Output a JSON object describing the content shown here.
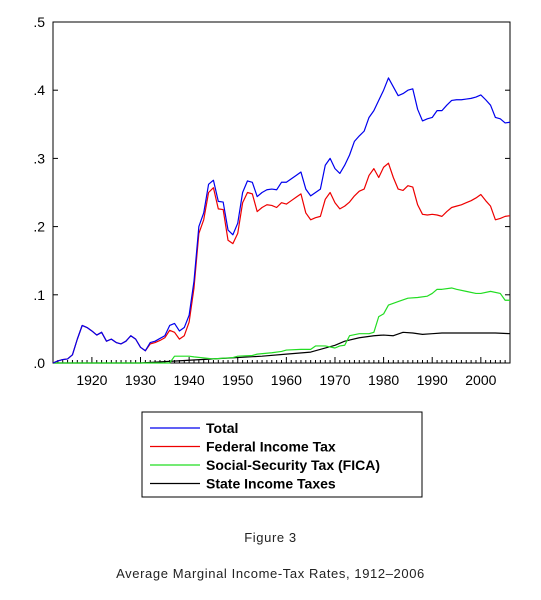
{
  "chart_data": {
    "type": "line",
    "xlim": [
      1912,
      2006
    ],
    "ylim": [
      0,
      0.5
    ],
    "x_ticks": [
      1920,
      1930,
      1940,
      1950,
      1960,
      1970,
      1980,
      1990,
      2000
    ],
    "x_tick_labels": [
      "1920",
      "1930",
      "1940",
      "1950",
      "1960",
      "1970",
      "1980",
      "1990",
      "2000"
    ],
    "y_ticks": [
      0,
      0.1,
      0.2,
      0.3,
      0.4,
      0.5
    ],
    "y_tick_labels": [
      ".0",
      ".1",
      ".2",
      ".3",
      ".4",
      ".5"
    ],
    "grid": false,
    "legend_position": "bottom",
    "series": [
      {
        "name": "Total",
        "color": "#0000ee",
        "points": [
          [
            1912,
            0.0
          ],
          [
            1913,
            0.003
          ],
          [
            1914,
            0.005
          ],
          [
            1915,
            0.006
          ],
          [
            1916,
            0.012
          ],
          [
            1917,
            0.035
          ],
          [
            1918,
            0.055
          ],
          [
            1919,
            0.052
          ],
          [
            1920,
            0.047
          ],
          [
            1921,
            0.041
          ],
          [
            1922,
            0.045
          ],
          [
            1923,
            0.032
          ],
          [
            1924,
            0.035
          ],
          [
            1925,
            0.03
          ],
          [
            1926,
            0.028
          ],
          [
            1927,
            0.032
          ],
          [
            1928,
            0.04
          ],
          [
            1929,
            0.035
          ],
          [
            1930,
            0.023
          ],
          [
            1931,
            0.018
          ],
          [
            1932,
            0.03
          ],
          [
            1933,
            0.032
          ],
          [
            1934,
            0.036
          ],
          [
            1935,
            0.04
          ],
          [
            1936,
            0.055
          ],
          [
            1937,
            0.058
          ],
          [
            1938,
            0.047
          ],
          [
            1939,
            0.052
          ],
          [
            1940,
            0.07
          ],
          [
            1941,
            0.12
          ],
          [
            1942,
            0.2
          ],
          [
            1943,
            0.22
          ],
          [
            1944,
            0.262
          ],
          [
            1945,
            0.268
          ],
          [
            1946,
            0.237
          ],
          [
            1947,
            0.236
          ],
          [
            1948,
            0.195
          ],
          [
            1949,
            0.188
          ],
          [
            1950,
            0.205
          ],
          [
            1951,
            0.25
          ],
          [
            1952,
            0.267
          ],
          [
            1953,
            0.265
          ],
          [
            1954,
            0.244
          ],
          [
            1955,
            0.25
          ],
          [
            1956,
            0.254
          ],
          [
            1957,
            0.255
          ],
          [
            1958,
            0.254
          ],
          [
            1959,
            0.265
          ],
          [
            1960,
            0.265
          ],
          [
            1961,
            0.27
          ],
          [
            1962,
            0.275
          ],
          [
            1963,
            0.28
          ],
          [
            1964,
            0.255
          ],
          [
            1965,
            0.245
          ],
          [
            1966,
            0.25
          ],
          [
            1967,
            0.255
          ],
          [
            1968,
            0.29
          ],
          [
            1969,
            0.3
          ],
          [
            1970,
            0.285
          ],
          [
            1971,
            0.278
          ],
          [
            1972,
            0.29
          ],
          [
            1973,
            0.305
          ],
          [
            1974,
            0.325
          ],
          [
            1975,
            0.333
          ],
          [
            1976,
            0.34
          ],
          [
            1977,
            0.36
          ],
          [
            1978,
            0.37
          ],
          [
            1979,
            0.385
          ],
          [
            1980,
            0.4
          ],
          [
            1981,
            0.418
          ],
          [
            1982,
            0.405
          ],
          [
            1983,
            0.392
          ],
          [
            1984,
            0.395
          ],
          [
            1985,
            0.4
          ],
          [
            1986,
            0.402
          ],
          [
            1987,
            0.372
          ],
          [
            1988,
            0.355
          ],
          [
            1989,
            0.358
          ],
          [
            1990,
            0.36
          ],
          [
            1991,
            0.37
          ],
          [
            1992,
            0.37
          ],
          [
            1993,
            0.378
          ],
          [
            1994,
            0.385
          ],
          [
            1995,
            0.386
          ],
          [
            1996,
            0.386
          ],
          [
            1997,
            0.387
          ],
          [
            1998,
            0.388
          ],
          [
            1999,
            0.39
          ],
          [
            2000,
            0.393
          ],
          [
            2001,
            0.386
          ],
          [
            2002,
            0.378
          ],
          [
            2003,
            0.36
          ],
          [
            2004,
            0.358
          ],
          [
            2005,
            0.352
          ],
          [
            2006,
            0.353
          ]
        ]
      },
      {
        "name": "Federal Income Tax",
        "color": "#ee0000",
        "points": [
          [
            1912,
            0.0
          ],
          [
            1913,
            0.003
          ],
          [
            1914,
            0.005
          ],
          [
            1915,
            0.006
          ],
          [
            1916,
            0.012
          ],
          [
            1917,
            0.035
          ],
          [
            1918,
            0.055
          ],
          [
            1919,
            0.052
          ],
          [
            1920,
            0.047
          ],
          [
            1921,
            0.041
          ],
          [
            1922,
            0.045
          ],
          [
            1923,
            0.032
          ],
          [
            1924,
            0.035
          ],
          [
            1925,
            0.03
          ],
          [
            1926,
            0.028
          ],
          [
            1927,
            0.032
          ],
          [
            1928,
            0.04
          ],
          [
            1929,
            0.035
          ],
          [
            1930,
            0.023
          ],
          [
            1931,
            0.018
          ],
          [
            1932,
            0.028
          ],
          [
            1933,
            0.03
          ],
          [
            1934,
            0.033
          ],
          [
            1935,
            0.037
          ],
          [
            1936,
            0.048
          ],
          [
            1937,
            0.045
          ],
          [
            1938,
            0.035
          ],
          [
            1939,
            0.04
          ],
          [
            1940,
            0.06
          ],
          [
            1941,
            0.11
          ],
          [
            1942,
            0.19
          ],
          [
            1943,
            0.21
          ],
          [
            1944,
            0.25
          ],
          [
            1945,
            0.257
          ],
          [
            1946,
            0.226
          ],
          [
            1947,
            0.225
          ],
          [
            1948,
            0.18
          ],
          [
            1949,
            0.175
          ],
          [
            1950,
            0.19
          ],
          [
            1951,
            0.235
          ],
          [
            1952,
            0.25
          ],
          [
            1953,
            0.248
          ],
          [
            1954,
            0.222
          ],
          [
            1955,
            0.228
          ],
          [
            1956,
            0.232
          ],
          [
            1957,
            0.231
          ],
          [
            1958,
            0.228
          ],
          [
            1959,
            0.235
          ],
          [
            1960,
            0.233
          ],
          [
            1961,
            0.238
          ],
          [
            1962,
            0.243
          ],
          [
            1963,
            0.248
          ],
          [
            1964,
            0.22
          ],
          [
            1965,
            0.21
          ],
          [
            1966,
            0.213
          ],
          [
            1967,
            0.215
          ],
          [
            1968,
            0.24
          ],
          [
            1969,
            0.25
          ],
          [
            1970,
            0.235
          ],
          [
            1971,
            0.226
          ],
          [
            1972,
            0.23
          ],
          [
            1973,
            0.236
          ],
          [
            1974,
            0.245
          ],
          [
            1975,
            0.252
          ],
          [
            1976,
            0.255
          ],
          [
            1977,
            0.275
          ],
          [
            1978,
            0.285
          ],
          [
            1979,
            0.272
          ],
          [
            1980,
            0.287
          ],
          [
            1981,
            0.293
          ],
          [
            1982,
            0.272
          ],
          [
            1983,
            0.255
          ],
          [
            1984,
            0.253
          ],
          [
            1985,
            0.26
          ],
          [
            1986,
            0.258
          ],
          [
            1987,
            0.232
          ],
          [
            1988,
            0.218
          ],
          [
            1989,
            0.217
          ],
          [
            1990,
            0.218
          ],
          [
            1991,
            0.217
          ],
          [
            1992,
            0.215
          ],
          [
            1993,
            0.222
          ],
          [
            1994,
            0.228
          ],
          [
            1995,
            0.23
          ],
          [
            1996,
            0.232
          ],
          [
            1997,
            0.235
          ],
          [
            1998,
            0.238
          ],
          [
            1999,
            0.242
          ],
          [
            2000,
            0.247
          ],
          [
            2001,
            0.238
          ],
          [
            2002,
            0.23
          ],
          [
            2003,
            0.21
          ],
          [
            2004,
            0.212
          ],
          [
            2005,
            0.215
          ],
          [
            2006,
            0.216
          ]
        ]
      },
      {
        "name": "Social-Security Tax (FICA)",
        "color": "#22dd22",
        "points": [
          [
            1912,
            0.0
          ],
          [
            1936,
            0.0
          ],
          [
            1937,
            0.01
          ],
          [
            1938,
            0.01
          ],
          [
            1940,
            0.01
          ],
          [
            1941,
            0.009
          ],
          [
            1945,
            0.006
          ],
          [
            1949,
            0.008
          ],
          [
            1950,
            0.01
          ],
          [
            1953,
            0.011
          ],
          [
            1954,
            0.013
          ],
          [
            1957,
            0.015
          ],
          [
            1959,
            0.017
          ],
          [
            1960,
            0.019
          ],
          [
            1963,
            0.02
          ],
          [
            1965,
            0.02
          ],
          [
            1966,
            0.025
          ],
          [
            1967,
            0.025
          ],
          [
            1968,
            0.025
          ],
          [
            1970,
            0.022
          ],
          [
            1971,
            0.025
          ],
          [
            1972,
            0.026
          ],
          [
            1973,
            0.04
          ],
          [
            1975,
            0.043
          ],
          [
            1977,
            0.043
          ],
          [
            1978,
            0.045
          ],
          [
            1979,
            0.068
          ],
          [
            1980,
            0.072
          ],
          [
            1981,
            0.085
          ],
          [
            1983,
            0.09
          ],
          [
            1985,
            0.095
          ],
          [
            1987,
            0.096
          ],
          [
            1989,
            0.098
          ],
          [
            1990,
            0.102
          ],
          [
            1991,
            0.108
          ],
          [
            1992,
            0.108
          ],
          [
            1994,
            0.11
          ],
          [
            1995,
            0.108
          ],
          [
            1997,
            0.105
          ],
          [
            1999,
            0.102
          ],
          [
            2000,
            0.102
          ],
          [
            2002,
            0.105
          ],
          [
            2004,
            0.102
          ],
          [
            2005,
            0.092
          ],
          [
            2006,
            0.092
          ]
        ]
      },
      {
        "name": "State Income Taxes",
        "color": "#000000",
        "points": [
          [
            1912,
            0.0
          ],
          [
            1930,
            0.0
          ],
          [
            1935,
            0.002
          ],
          [
            1940,
            0.004
          ],
          [
            1945,
            0.006
          ],
          [
            1950,
            0.008
          ],
          [
            1955,
            0.01
          ],
          [
            1960,
            0.013
          ],
          [
            1965,
            0.016
          ],
          [
            1970,
            0.026
          ],
          [
            1972,
            0.032
          ],
          [
            1975,
            0.037
          ],
          [
            1978,
            0.04
          ],
          [
            1980,
            0.041
          ],
          [
            1982,
            0.04
          ],
          [
            1984,
            0.045
          ],
          [
            1986,
            0.044
          ],
          [
            1988,
            0.042
          ],
          [
            1990,
            0.043
          ],
          [
            1992,
            0.044
          ],
          [
            1995,
            0.044
          ],
          [
            2000,
            0.044
          ],
          [
            2003,
            0.044
          ],
          [
            2006,
            0.043
          ]
        ]
      }
    ]
  },
  "caption": {
    "figure_label": "Figure 3",
    "title": "Average Marginal Income-Tax Rates, 1912–2006"
  }
}
